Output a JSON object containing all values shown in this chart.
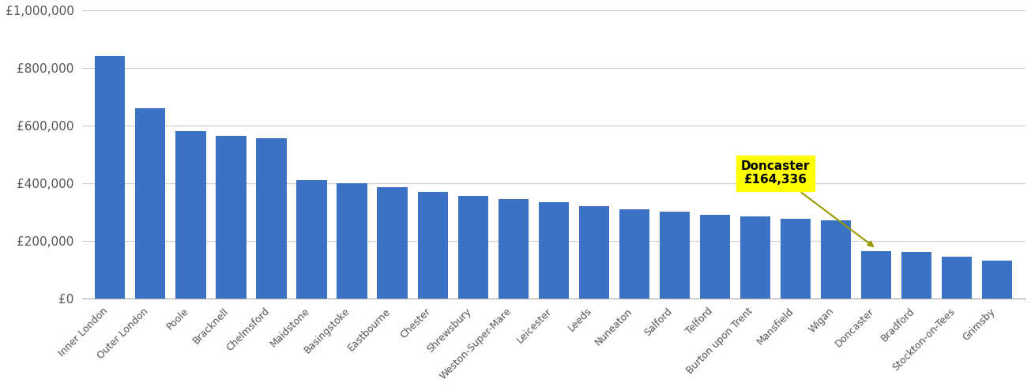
{
  "categories": [
    "Inner London",
    "Outer London",
    "Poole",
    "Bracknell",
    "Chelmsford",
    "Maidstone",
    "Basingstoke",
    "Eastbourne",
    "Chester",
    "Shrewsbury",
    "Weston-Super-Mare",
    "Leicester",
    "Leeds",
    "Nuneaton",
    "Salford",
    "Telford",
    "Burton upon Trent",
    "Mansfield",
    "Wigan",
    "Doncaster",
    "Bradford",
    "Stockton-on-Tees",
    "Grimsby"
  ],
  "values": [
    840000,
    660000,
    580000,
    565000,
    555000,
    410000,
    400000,
    385000,
    370000,
    355000,
    345000,
    335000,
    320000,
    310000,
    300000,
    290000,
    285000,
    275000,
    270000,
    164336,
    160000,
    145000,
    130000
  ],
  "bar_color": "#3B72C3",
  "background_color": "#ffffff",
  "grid_color": "#cccccc",
  "annotation_bg": "#ffff00",
  "annotation_text": "Doncaster\n£164,336",
  "doncaster_value": 164336,
  "doncaster_index": 19,
  "ylim": [
    0,
    1000000
  ],
  "yticks": [
    0,
    200000,
    400000,
    600000,
    800000,
    1000000
  ],
  "ytick_labels": [
    "£0",
    "£200,000",
    "£400,000",
    "£600,000",
    "£800,000",
    "£1,000,000"
  ]
}
